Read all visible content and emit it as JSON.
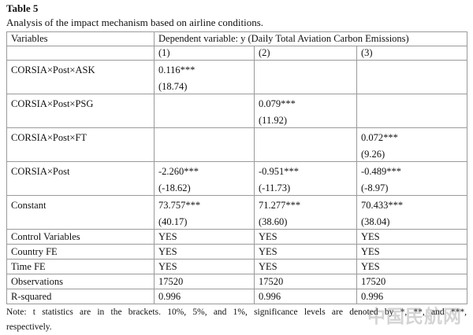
{
  "table_label": "Table 5",
  "caption": "Analysis of the impact mechanism based on airline conditions.",
  "header": {
    "variables_label": "Variables",
    "dependent_label": "Dependent variable: y (Daily Total Aviation Carbon Emissions)",
    "columns": [
      "(1)",
      "(2)",
      "(3)"
    ]
  },
  "rows": [
    {
      "label": "CORSIA×Post×ASK",
      "coef": [
        "0.116***",
        "",
        ""
      ],
      "se": [
        "(18.74)",
        "",
        ""
      ]
    },
    {
      "label": "CORSIA×Post×PSG",
      "coef": [
        "",
        "0.079***",
        ""
      ],
      "se": [
        "",
        "(11.92)",
        ""
      ]
    },
    {
      "label": "CORSIA×Post×FT",
      "coef": [
        "",
        "",
        "0.072***"
      ],
      "se": [
        "",
        "",
        "(9.26)"
      ]
    },
    {
      "label": "CORSIA×Post",
      "coef": [
        "-2.260***",
        "-0.951***",
        "-0.489***"
      ],
      "se": [
        "(-18.62)",
        "(-11.73)",
        "(-8.97)"
      ]
    },
    {
      "label": "Constant",
      "coef": [
        "73.757***",
        "71.277***",
        "70.433***"
      ],
      "se": [
        "(40.17)",
        "(38.60)",
        "(38.04)"
      ]
    }
  ],
  "simple_rows": [
    {
      "label": "Control Variables",
      "values": [
        "YES",
        "YES",
        "YES"
      ]
    },
    {
      "label": "Country FE",
      "values": [
        "YES",
        "YES",
        "YES"
      ]
    },
    {
      "label": "Time FE",
      "values": [
        "YES",
        "YES",
        "YES"
      ]
    },
    {
      "label": "Observations",
      "values": [
        "17520",
        "17520",
        "17520"
      ]
    },
    {
      "label": "R-squared",
      "values": [
        "0.996",
        "0.996",
        "0.996"
      ]
    }
  ],
  "note": {
    "line1": "Note: t statistics are in the brackets. 10%, 5%, and 1%, significance levels are denoted by *, **, and ***,",
    "line2": "respectively."
  },
  "watermark": "中国民航网"
}
